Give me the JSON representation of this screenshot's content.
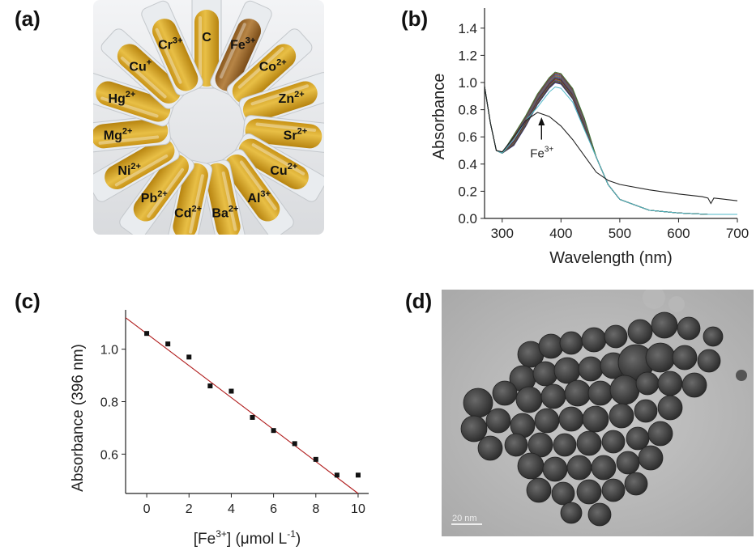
{
  "panels": {
    "a": "(a)",
    "b": "(b)",
    "c": "(c)",
    "d": "(d)"
  },
  "tubes": [
    {
      "ion": "C",
      "charge": "",
      "color": "#111111"
    },
    {
      "ion": "Fe",
      "charge": "3+",
      "color": "#2b3fbf"
    },
    {
      "ion": "Co",
      "charge": "2+",
      "color": "#111111"
    },
    {
      "ion": "Zn",
      "charge": "2+",
      "color": "#111111"
    },
    {
      "ion": "Sr",
      "charge": "2+",
      "color": "#111111"
    },
    {
      "ion": "Cu",
      "charge": "2+",
      "color": "#111111"
    },
    {
      "ion": "Al",
      "charge": "3+",
      "color": "#111111"
    },
    {
      "ion": "Ba",
      "charge": "2+",
      "color": "#111111"
    },
    {
      "ion": "Cd",
      "charge": "2+",
      "color": "#111111"
    },
    {
      "ion": "Pb",
      "charge": "2+",
      "color": "#111111"
    },
    {
      "ion": "Ni",
      "charge": "2+",
      "color": "#111111"
    },
    {
      "ion": "Mg",
      "charge": "2+",
      "color": "#111111"
    },
    {
      "ion": "Hg",
      "charge": "2+",
      "color": "#111111"
    },
    {
      "ion": "Cu",
      "charge": "+",
      "color": "#111111"
    },
    {
      "ion": "Cr",
      "charge": "3+",
      "color": "#111111"
    }
  ],
  "tem": {
    "scale_bar": "20 nm"
  },
  "chart_data": [
    {
      "panel": "b",
      "type": "line",
      "xlabel": "Wavelength (nm)",
      "ylabel": "Absorbance",
      "xlim": [
        270,
        700
      ],
      "ylim": [
        0.0,
        1.5
      ],
      "xticks": [
        300,
        400,
        500,
        600,
        700
      ],
      "yticks": [
        0.0,
        0.2,
        0.4,
        0.6,
        0.8,
        1.0,
        1.2,
        1.4
      ],
      "annotation": {
        "text": "Fe",
        "sup": "3+",
        "x": 360,
        "y": 0.78
      },
      "series_groups": [
        {
          "role": "other ions",
          "count": 14,
          "x": [
            270,
            280,
            290,
            300,
            320,
            340,
            360,
            380,
            390,
            400,
            420,
            440,
            460,
            480,
            500,
            550,
            600,
            650,
            700
          ],
          "y": [
            0.97,
            0.7,
            0.5,
            0.48,
            0.58,
            0.72,
            0.88,
            1.0,
            1.04,
            1.03,
            0.92,
            0.7,
            0.45,
            0.25,
            0.14,
            0.06,
            0.04,
            0.03,
            0.03
          ]
        },
        {
          "role": "Fe3+",
          "count": 1,
          "x": [
            270,
            280,
            290,
            300,
            320,
            340,
            360,
            380,
            400,
            420,
            440,
            460,
            480,
            500,
            550,
            600,
            640,
            650,
            655,
            660,
            700
          ],
          "y": [
            0.97,
            0.7,
            0.5,
            0.49,
            0.6,
            0.72,
            0.78,
            0.75,
            0.68,
            0.58,
            0.46,
            0.34,
            0.28,
            0.25,
            0.21,
            0.18,
            0.16,
            0.15,
            0.11,
            0.15,
            0.13
          ]
        }
      ]
    },
    {
      "panel": "c",
      "type": "scatter",
      "xlabel": "[Fe",
      "xlabel_sup": "3+",
      "xlabel_tail": "] (μmol L",
      "xlabel_sup2": "-1",
      "xlabel_end": ")",
      "ylabel": "Absorbance (396 nm)",
      "xlim": [
        -1.0,
        10.5
      ],
      "ylim": [
        0.45,
        1.15
      ],
      "xticks": [
        0,
        2,
        4,
        6,
        8,
        10
      ],
      "yticks": [
        0.6,
        0.8,
        1.0
      ],
      "x": [
        0,
        1,
        2,
        3,
        4,
        5,
        6,
        7,
        8,
        9,
        10
      ],
      "y": [
        1.06,
        1.02,
        0.97,
        0.86,
        0.84,
        0.74,
        0.69,
        0.64,
        0.58,
        0.52,
        0.52
      ],
      "fit": {
        "x": [
          -1.0,
          10.0
        ],
        "y": [
          1.12,
          0.45
        ]
      }
    }
  ]
}
